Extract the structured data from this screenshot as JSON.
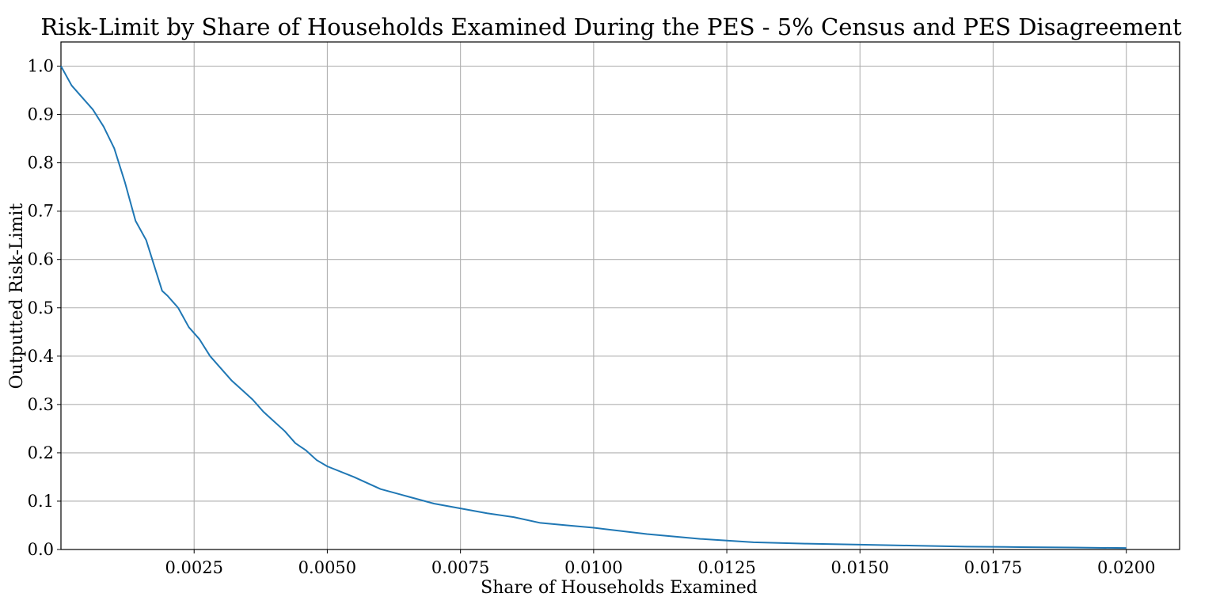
{
  "chart_data": {
    "type": "line",
    "title": "Risk-Limit by Share of Households Examined During the PES - 5% Census and PES Disagreement",
    "xlabel": "Share of Households Examined",
    "ylabel": "Outputted Risk-Limit",
    "xlim": [
      0.0,
      0.021
    ],
    "ylim": [
      0.0,
      1.05
    ],
    "grid": true,
    "legend": "none",
    "series_color": "#1f77b4",
    "x_ticks": [
      0.0025,
      0.005,
      0.0075,
      0.01,
      0.0125,
      0.015,
      0.0175,
      0.02
    ],
    "x_tick_labels": [
      "0.0025",
      "0.0050",
      "0.0075",
      "0.0100",
      "0.0125",
      "0.0150",
      "0.0175",
      "0.0200"
    ],
    "y_ticks": [
      0.0,
      0.1,
      0.2,
      0.3,
      0.4,
      0.5,
      0.6,
      0.7,
      0.8,
      0.9,
      1.0
    ],
    "y_tick_labels": [
      "0.0",
      "0.1",
      "0.2",
      "0.3",
      "0.4",
      "0.5",
      "0.6",
      "0.7",
      "0.8",
      "0.9",
      "1.0"
    ],
    "series": [
      {
        "x": [
          0.0,
          0.0002,
          0.0004,
          0.0006,
          0.0008,
          0.001,
          0.0012,
          0.0014,
          0.0016,
          0.0018,
          0.0019,
          0.002,
          0.0022,
          0.0024,
          0.0026,
          0.0028,
          0.003,
          0.0032,
          0.0034,
          0.0036,
          0.0038,
          0.004,
          0.0042,
          0.0044,
          0.0046,
          0.0048,
          0.005,
          0.0055,
          0.006,
          0.0065,
          0.007,
          0.0075,
          0.008,
          0.0085,
          0.009,
          0.0095,
          0.01,
          0.011,
          0.012,
          0.013,
          0.014,
          0.015,
          0.016,
          0.017,
          0.018,
          0.019,
          0.02
        ],
        "y": [
          1.0,
          0.96,
          0.935,
          0.91,
          0.875,
          0.83,
          0.76,
          0.68,
          0.64,
          0.57,
          0.535,
          0.525,
          0.5,
          0.46,
          0.435,
          0.4,
          0.375,
          0.35,
          0.33,
          0.31,
          0.285,
          0.265,
          0.245,
          0.22,
          0.205,
          0.185,
          0.172,
          0.15,
          0.125,
          0.11,
          0.095,
          0.085,
          0.075,
          0.067,
          0.055,
          0.05,
          0.045,
          0.032,
          0.022,
          0.015,
          0.012,
          0.01,
          0.008,
          0.006,
          0.005,
          0.004,
          0.003
        ]
      }
    ]
  }
}
